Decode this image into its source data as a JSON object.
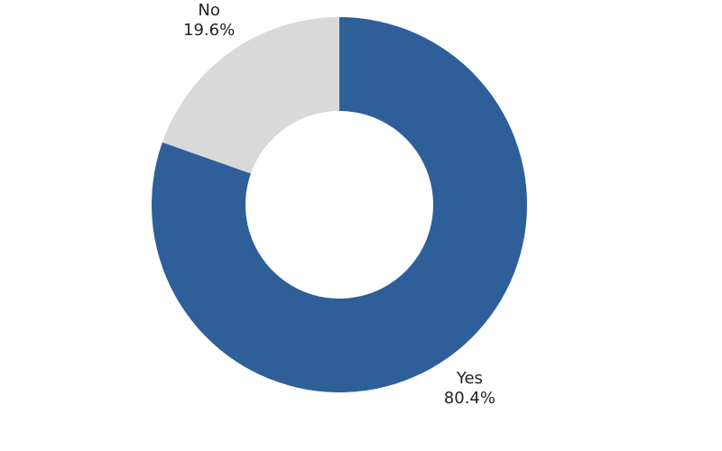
{
  "chart_data": {
    "type": "donut",
    "categories": [
      "Yes",
      "No"
    ],
    "values": [
      80.4,
      19.6
    ],
    "value_labels": [
      "80.4%",
      "19.6%"
    ],
    "colors": [
      "#2e5f99",
      "#d9d9d9"
    ]
  }
}
